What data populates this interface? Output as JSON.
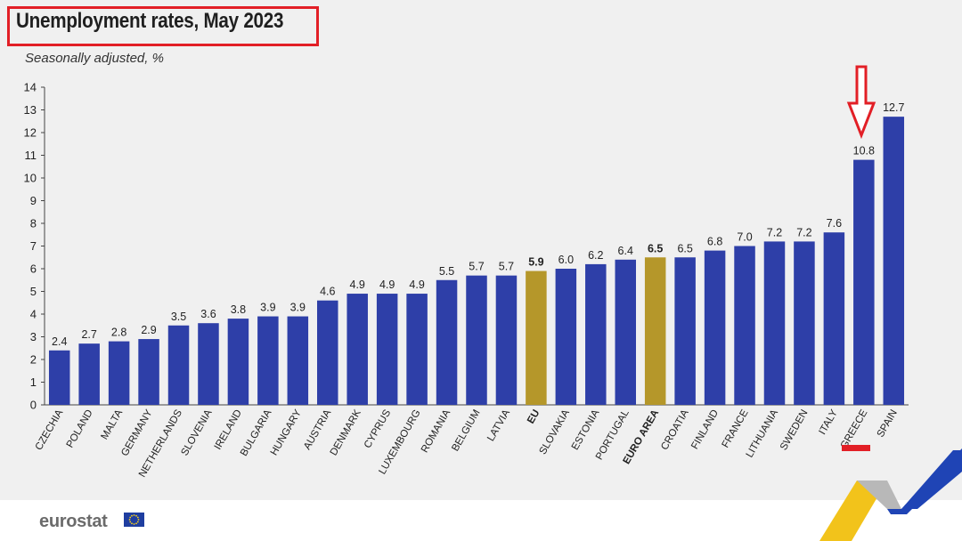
{
  "header": {
    "title": "Unemployment rates, May 2023",
    "subtitle": "Seasonally adjusted, %"
  },
  "footer": {
    "logo_text": "eurostat",
    "logo_icon": "eu-flag-icon"
  },
  "annotations": {
    "arrow_icon": "down-arrow-icon",
    "arrow_color": "#e21f26",
    "highlight_box_color": "#e21f26",
    "highlighted_category": "GREECE"
  },
  "colors": {
    "bar": "#2e3fa8",
    "aggregate_bar": "#b5972a",
    "background": "#f0f0f0",
    "annotation": "#e21f26"
  },
  "chart_data": {
    "type": "bar",
    "title": "Unemployment rates, May 2023",
    "subtitle": "Seasonally adjusted, %",
    "xlabel": "",
    "ylabel": "",
    "ylim": [
      0,
      14
    ],
    "yticks": [
      0,
      1,
      2,
      3,
      4,
      5,
      6,
      7,
      8,
      9,
      10,
      11,
      12,
      13,
      14
    ],
    "grid": false,
    "categories": [
      "CZECHIA",
      "POLAND",
      "MALTA",
      "GERMANY",
      "NETHERLANDS",
      "SLOVENIA",
      "IRELAND",
      "BULGARIA",
      "HUNGARY",
      "AUSTRIA",
      "DENMARK",
      "CYPRUS",
      "LUXEMBOURG",
      "ROMANIA",
      "BELGIUM",
      "LATVIA",
      "EU",
      "SLOVAKIA",
      "ESTONIA",
      "PORTUGAL",
      "EURO AREA",
      "CROATIA",
      "FINLAND",
      "FRANCE",
      "LITHUANIA",
      "SWEDEN",
      "ITALY",
      "GREECE",
      "SPAIN"
    ],
    "values": [
      2.4,
      2.7,
      2.8,
      2.9,
      3.5,
      3.6,
      3.8,
      3.9,
      3.9,
      4.6,
      4.9,
      4.9,
      4.9,
      5.5,
      5.7,
      5.7,
      5.9,
      6.0,
      6.2,
      6.4,
      6.5,
      6.5,
      6.8,
      7.0,
      7.2,
      7.2,
      7.6,
      10.8,
      12.7
    ],
    "value_labels": [
      "2.4",
      "2.7",
      "2.8",
      "2.9",
      "3.5",
      "3.6",
      "3.8",
      "3.9",
      "3.9",
      "4.6",
      "4.9",
      "4.9",
      "4.9",
      "5.5",
      "5.7",
      "5.7",
      "5.9",
      "6.0",
      "6.2",
      "6.4",
      "6.5",
      "6.5",
      "6.8",
      "7.0",
      "7.2",
      "7.2",
      "7.6",
      "10.8",
      "12.7"
    ],
    "highlighted": [
      "EU",
      "EURO AREA"
    ]
  }
}
